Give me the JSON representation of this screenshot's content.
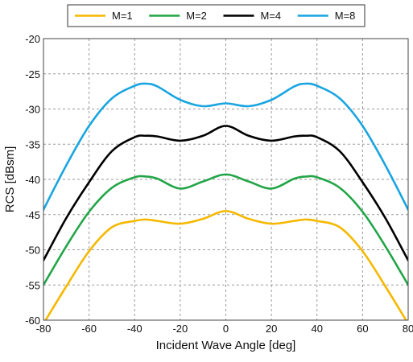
{
  "chart_data": {
    "type": "line",
    "title": "",
    "xlabel": "Incident Wave Angle [deg]",
    "ylabel": "RCS [dBsm]",
    "xlim": [
      -80,
      80
    ],
    "ylim": [
      -60,
      -20
    ],
    "xticks": [
      -80,
      -60,
      -40,
      -20,
      0,
      20,
      40,
      60,
      80
    ],
    "yticks": [
      -20,
      -25,
      -30,
      -35,
      -40,
      -45,
      -50,
      -55,
      -60
    ],
    "grid": true,
    "legend_position": "top-center",
    "x": [
      -80,
      -70,
      -60,
      -50,
      -40,
      -35,
      -30,
      -20,
      -10,
      0,
      10,
      20,
      30,
      35,
      40,
      50,
      60,
      70,
      80
    ],
    "series": [
      {
        "name": "M=1",
        "color": "#f5b800",
        "values": [
          -60.5,
          -55.2,
          -50.2,
          -46.8,
          -45.9,
          -45.7,
          -45.9,
          -46.3,
          -45.6,
          -44.5,
          -45.6,
          -46.3,
          -45.9,
          -45.7,
          -45.9,
          -46.8,
          -50.2,
          -55.2,
          -60.5
        ]
      },
      {
        "name": "M=2",
        "color": "#22a547",
        "values": [
          -55.0,
          -49.5,
          -44.6,
          -41.2,
          -39.7,
          -39.6,
          -39.9,
          -41.3,
          -40.3,
          -39.3,
          -40.3,
          -41.3,
          -39.9,
          -39.6,
          -39.7,
          -41.2,
          -44.6,
          -49.5,
          -55.0
        ]
      },
      {
        "name": "M=4",
        "color": "#000000",
        "values": [
          -51.5,
          -45.5,
          -40.4,
          -36.0,
          -34.0,
          -33.8,
          -33.9,
          -34.5,
          -33.8,
          -32.4,
          -33.8,
          -34.5,
          -33.9,
          -33.8,
          -34.0,
          -36.0,
          -40.4,
          -45.5,
          -51.5
        ]
      },
      {
        "name": "M=8",
        "color": "#1aa5e0",
        "values": [
          -44.3,
          -38.0,
          -32.4,
          -28.5,
          -26.7,
          -26.4,
          -26.8,
          -28.7,
          -29.6,
          -29.2,
          -29.6,
          -28.7,
          -26.8,
          -26.4,
          -26.7,
          -28.5,
          -32.4,
          -38.0,
          -44.3
        ]
      }
    ]
  }
}
